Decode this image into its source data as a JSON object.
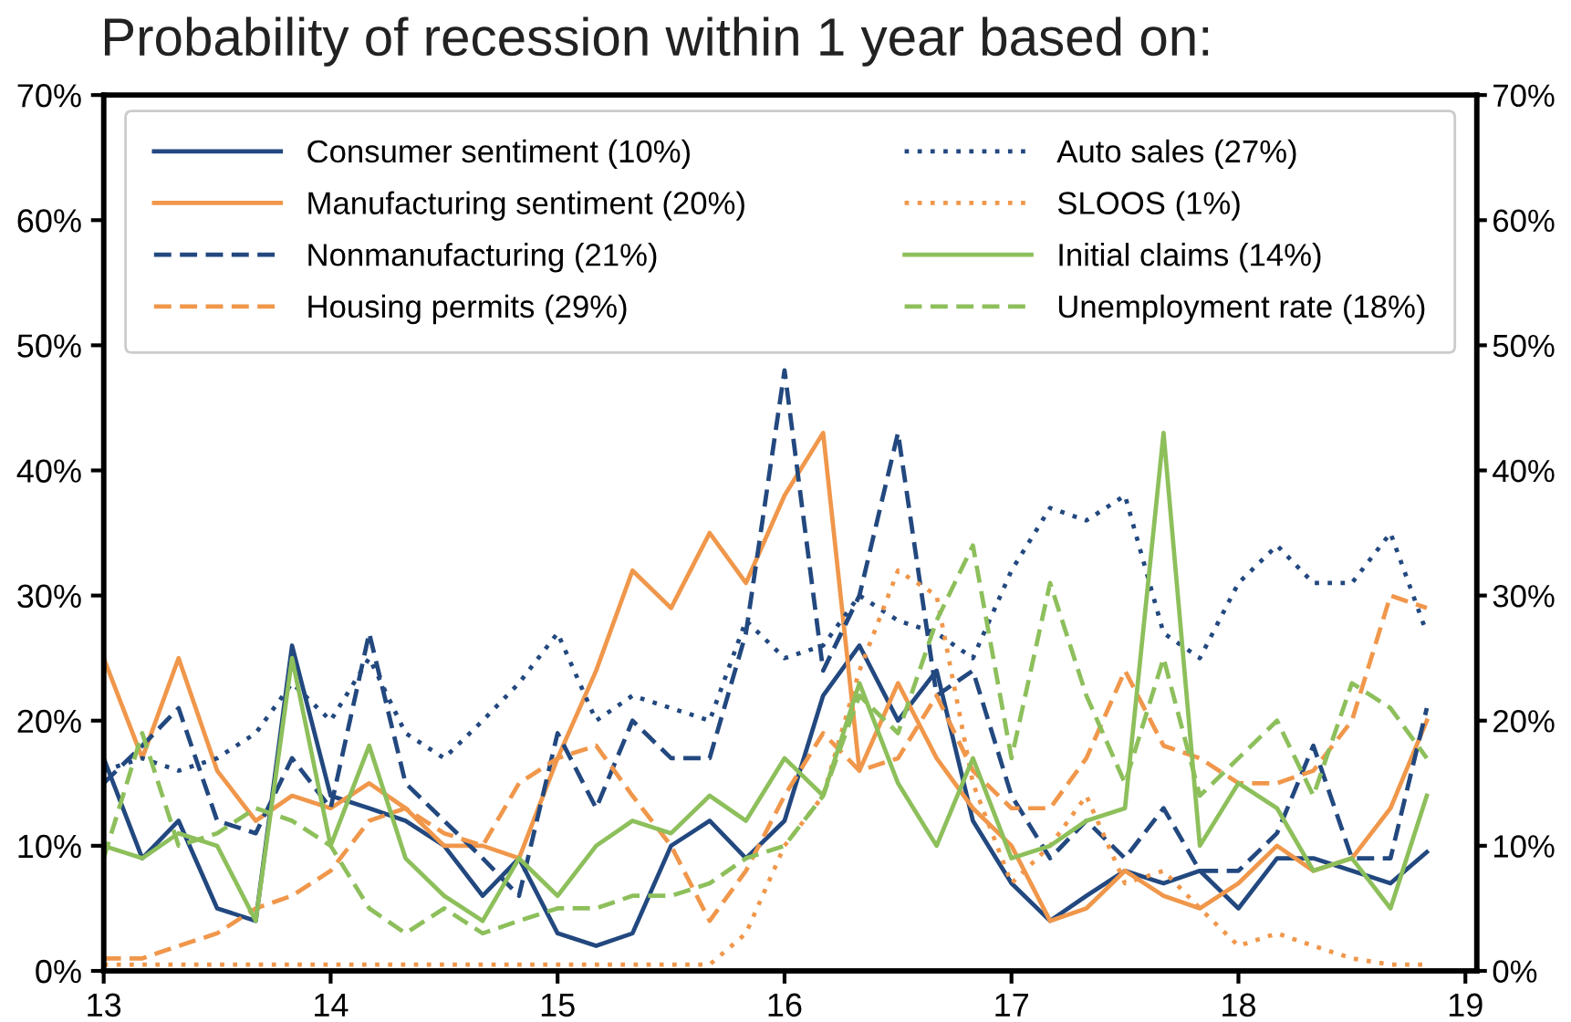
{
  "chart_data": {
    "type": "line",
    "title": "Probability of recession within 1 year based on:",
    "x": [
      13,
      13.17,
      13.33,
      13.5,
      13.67,
      13.83,
      14,
      14.17,
      14.33,
      14.5,
      14.67,
      14.83,
      15,
      15.17,
      15.33,
      15.5,
      15.67,
      15.83,
      16,
      16.17,
      16.33,
      16.5,
      16.67,
      16.83,
      17,
      17.17,
      17.33,
      17.5,
      17.67,
      17.83,
      18,
      18.17,
      18.33,
      18.5,
      18.67,
      18.83
    ],
    "series": [
      {
        "name": "Consumer sentiment (10%)",
        "color": "#22487f",
        "line_style": "solid",
        "values": [
          17,
          9,
          12,
          5,
          4,
          26,
          14,
          13,
          12,
          10,
          6,
          9,
          3,
          2,
          3,
          10,
          12,
          9,
          12,
          22,
          26,
          20,
          24,
          12,
          7,
          4,
          6,
          8,
          7,
          8,
          5,
          9,
          9,
          8,
          7,
          9.5
        ]
      },
      {
        "name": "Manufacturing sentiment (20%)",
        "color": "#f0974b",
        "line_style": "solid",
        "values": [
          25,
          17,
          25,
          16,
          12,
          14,
          13,
          15,
          13,
          10,
          10,
          9,
          17,
          24,
          32,
          29,
          35,
          31,
          38,
          43,
          16,
          23,
          17,
          13,
          10,
          4,
          5,
          8,
          6,
          5,
          7,
          10,
          8,
          9,
          13,
          20
        ]
      },
      {
        "name": "Nonmanufacturing (21%)",
        "color": "#22487f",
        "line_style": "dashed",
        "values": [
          15,
          18,
          21,
          12,
          11,
          17,
          13,
          27,
          15,
          12,
          9,
          6,
          19,
          13,
          20,
          17,
          17,
          27,
          48,
          24,
          30,
          43,
          22,
          24,
          14,
          9,
          12,
          9,
          13,
          8,
          8,
          11,
          18,
          9,
          9,
          21
        ]
      },
      {
        "name": "Housing permits (29%)",
        "color": "#f0974b",
        "line_style": "dashed",
        "values": [
          1,
          1,
          2,
          3,
          5,
          6,
          8,
          12,
          13,
          11,
          10,
          15,
          17,
          18,
          14,
          10,
          4,
          8,
          14,
          19,
          16,
          17,
          22,
          16,
          13,
          13,
          17,
          24,
          18,
          17,
          15,
          15,
          16,
          20,
          30,
          29
        ]
      },
      {
        "name": "Auto sales (27%)",
        "color": "#22487f",
        "line_style": "dotted",
        "values": [
          16,
          17,
          16,
          17,
          19,
          23,
          20,
          25,
          19,
          17,
          20,
          23,
          27,
          20,
          22,
          21,
          20,
          28,
          25,
          26,
          30,
          28,
          27,
          25,
          32,
          37,
          36,
          38,
          27,
          25,
          31,
          34,
          31,
          31,
          35,
          27
        ]
      },
      {
        "name": "SLOOS (1%)",
        "color": "#f0974b",
        "line_style": "dotted",
        "values": [
          0.5,
          0.5,
          0.5,
          0.5,
          0.5,
          0.5,
          0.5,
          0.5,
          0.5,
          0.5,
          0.5,
          0.5,
          0.5,
          0.5,
          0.5,
          0.5,
          0.5,
          3,
          10,
          14,
          24,
          32,
          30,
          15,
          7,
          10,
          14,
          7,
          8,
          5,
          2,
          3,
          2,
          1,
          0.5,
          0.5
        ]
      },
      {
        "name": "Initial claims (14%)",
        "color": "#8dbf5b",
        "line_style": "solid",
        "values": [
          10,
          9,
          11,
          10,
          4,
          25,
          10,
          18,
          9,
          6,
          4,
          9,
          6,
          10,
          12,
          11,
          14,
          12,
          17,
          14,
          23,
          15,
          10,
          17,
          9,
          10,
          12,
          13,
          43,
          10,
          15,
          13,
          8,
          9,
          5,
          14
        ]
      },
      {
        "name": "Unemployment rate (18%)",
        "color": "#8dbf5b",
        "line_style": "dashed",
        "values": [
          9,
          19,
          10,
          11,
          13,
          12,
          10,
          5,
          3,
          5,
          3,
          4,
          5,
          5,
          6,
          6,
          7,
          9,
          10,
          14,
          22,
          19,
          28,
          34,
          17,
          31,
          22,
          15,
          25,
          14,
          17,
          20,
          14,
          23,
          21,
          17
        ]
      }
    ],
    "xlim": [
      13,
      19.05
    ],
    "xticks": [
      13,
      14,
      15,
      16,
      17,
      18,
      19
    ],
    "ylim": [
      0,
      70
    ],
    "yticks": [
      {
        "value": 0,
        "label": "0%"
      },
      {
        "value": 10,
        "label": "10%"
      },
      {
        "value": 20,
        "label": "20%"
      },
      {
        "value": 30,
        "label": "30%"
      },
      {
        "value": 40,
        "label": "40%"
      },
      {
        "value": 50,
        "label": "50%"
      },
      {
        "value": 60,
        "label": "60%"
      },
      {
        "value": 70,
        "label": "70%"
      }
    ],
    "y2lim": [
      0,
      70
    ],
    "y2ticks": [
      {
        "value": 0,
        "label": "0%"
      },
      {
        "value": 10,
        "label": "10%"
      },
      {
        "value": 20,
        "label": "20%"
      },
      {
        "value": 30,
        "label": "30%"
      },
      {
        "value": 40,
        "label": "40%"
      },
      {
        "value": 50,
        "label": "50%"
      },
      {
        "value": 60,
        "label": "60%"
      },
      {
        "value": 70,
        "label": "70%"
      }
    ],
    "grid": false,
    "legend": "top"
  }
}
